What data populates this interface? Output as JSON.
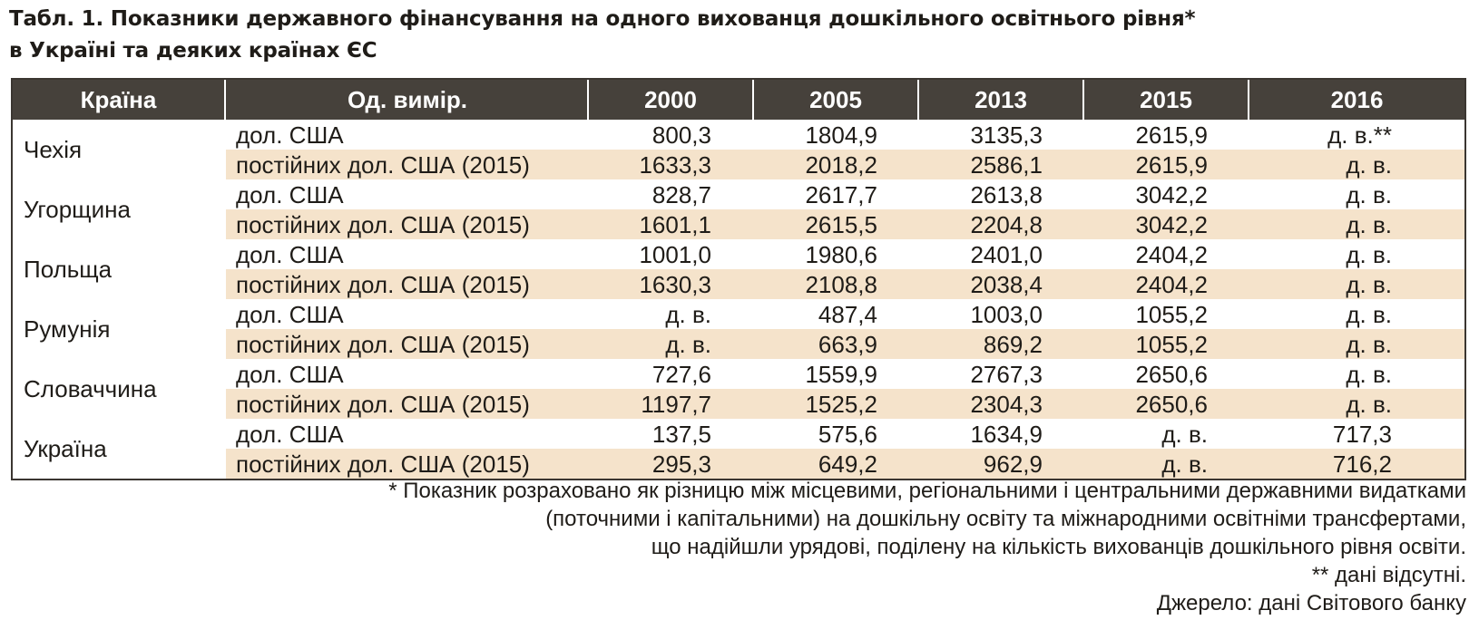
{
  "title": {
    "line1": "Табл. 1. Показники державного фінансування на одного вихованця дошкільного освітнього рівня*",
    "line2": "в Україні та деяких країнах ЄС"
  },
  "table": {
    "headers": [
      "Країна",
      "Од. вимір.",
      "2000",
      "2005",
      "2013",
      "2015",
      "2016"
    ],
    "groups": [
      {
        "country": "Чехія",
        "rows": [
          {
            "unit": "дол. США",
            "values": [
              "800,3",
              "1804,9",
              "3135,3",
              "2615,9",
              "д. в.**"
            ]
          },
          {
            "unit": "постійних дол. США (2015)",
            "values": [
              "1633,3",
              "2018,2",
              "2586,1",
              "2615,9",
              "д. в."
            ]
          }
        ]
      },
      {
        "country": "Угорщина",
        "rows": [
          {
            "unit": "дол. США",
            "values": [
              "828,7",
              "2617,7",
              "2613,8",
              "3042,2",
              "д. в."
            ]
          },
          {
            "unit": "постійних дол. США (2015)",
            "values": [
              "1601,1",
              "2615,5",
              "2204,8",
              "3042,2",
              "д. в."
            ]
          }
        ]
      },
      {
        "country": "Польща",
        "rows": [
          {
            "unit": "дол. США",
            "values": [
              "1001,0",
              "1980,6",
              "2401,0",
              "2404,2",
              "д. в."
            ]
          },
          {
            "unit": "постійних дол. США (2015)",
            "values": [
              "1630,3",
              "2108,8",
              "2038,4",
              "2404,2",
              "д. в."
            ]
          }
        ]
      },
      {
        "country": "Румунія",
        "rows": [
          {
            "unit": "дол. США",
            "values": [
              "д. в.",
              "487,4",
              "1003,0",
              "1055,2",
              "д. в."
            ]
          },
          {
            "unit": "постійних дол. США (2015)",
            "values": [
              "д. в.",
              "663,9",
              "869,2",
              "1055,2",
              "д. в."
            ]
          }
        ]
      },
      {
        "country": "Словаччина",
        "rows": [
          {
            "unit": "дол. США",
            "values": [
              "727,6",
              "1559,9",
              "2767,3",
              "2650,6",
              "д. в."
            ]
          },
          {
            "unit": "постійних дол. США (2015)",
            "values": [
              "1197,7",
              "1525,2",
              "2304,3",
              "2650,6",
              "д. в."
            ]
          }
        ]
      },
      {
        "country": "Україна",
        "rows": [
          {
            "unit": "дол. США",
            "values": [
              "137,5",
              "575,6",
              "1634,9",
              "д. в.",
              "717,3"
            ]
          },
          {
            "unit": "постійних дол. США (2015)",
            "values": [
              "295,3",
              "649,2",
              "962,9",
              "д. в.",
              "716,2"
            ]
          }
        ]
      }
    ]
  },
  "notes": [
    "* Показник розраховано як різницю між місцевими, регіональними і центральними державними видатками",
    "(поточними і капітальними) на дошкільну освіту та міжнародними освітніми трансфертами,",
    "що надійшли урядові, поділену на кількість вихованців дошкільного рівня освіти.",
    "** дані відсутні.",
    "Джерело: дані Світового банку"
  ],
  "colors": {
    "header_bg": "#46413b",
    "stripe_bg": "#f5e3cb",
    "border": "#3b3631"
  }
}
